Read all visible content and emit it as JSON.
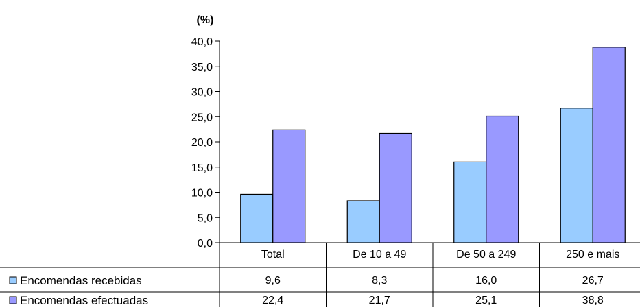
{
  "chart_data": {
    "type": "bar",
    "unit_label": "(%)",
    "categories": [
      "Total",
      "De 10 a 49",
      "De 50 a 249",
      "250 e mais"
    ],
    "series": [
      {
        "name": "Encomendas recebidas",
        "color": "#99ccff",
        "values": [
          9.6,
          8.3,
          16.0,
          26.7
        ],
        "value_labels": [
          "9,6",
          "8,3",
          "16,0",
          "26,7"
        ]
      },
      {
        "name": "Encomendas efectuadas",
        "color": "#9999ff",
        "values": [
          22.4,
          21.7,
          25.1,
          38.8
        ],
        "value_labels": [
          "22,4",
          "21,7",
          "25,1",
          "38,8"
        ]
      }
    ],
    "ylim": [
      0,
      40
    ],
    "yticks": [
      0,
      5,
      10,
      15,
      20,
      25,
      30,
      35,
      40
    ],
    "ytick_labels": [
      "0,0",
      "5,0",
      "10,0",
      "15,0",
      "20,0",
      "25,0",
      "30,0",
      "35,0",
      "40,0"
    ],
    "grid": false,
    "legend": "data-table-rows"
  }
}
